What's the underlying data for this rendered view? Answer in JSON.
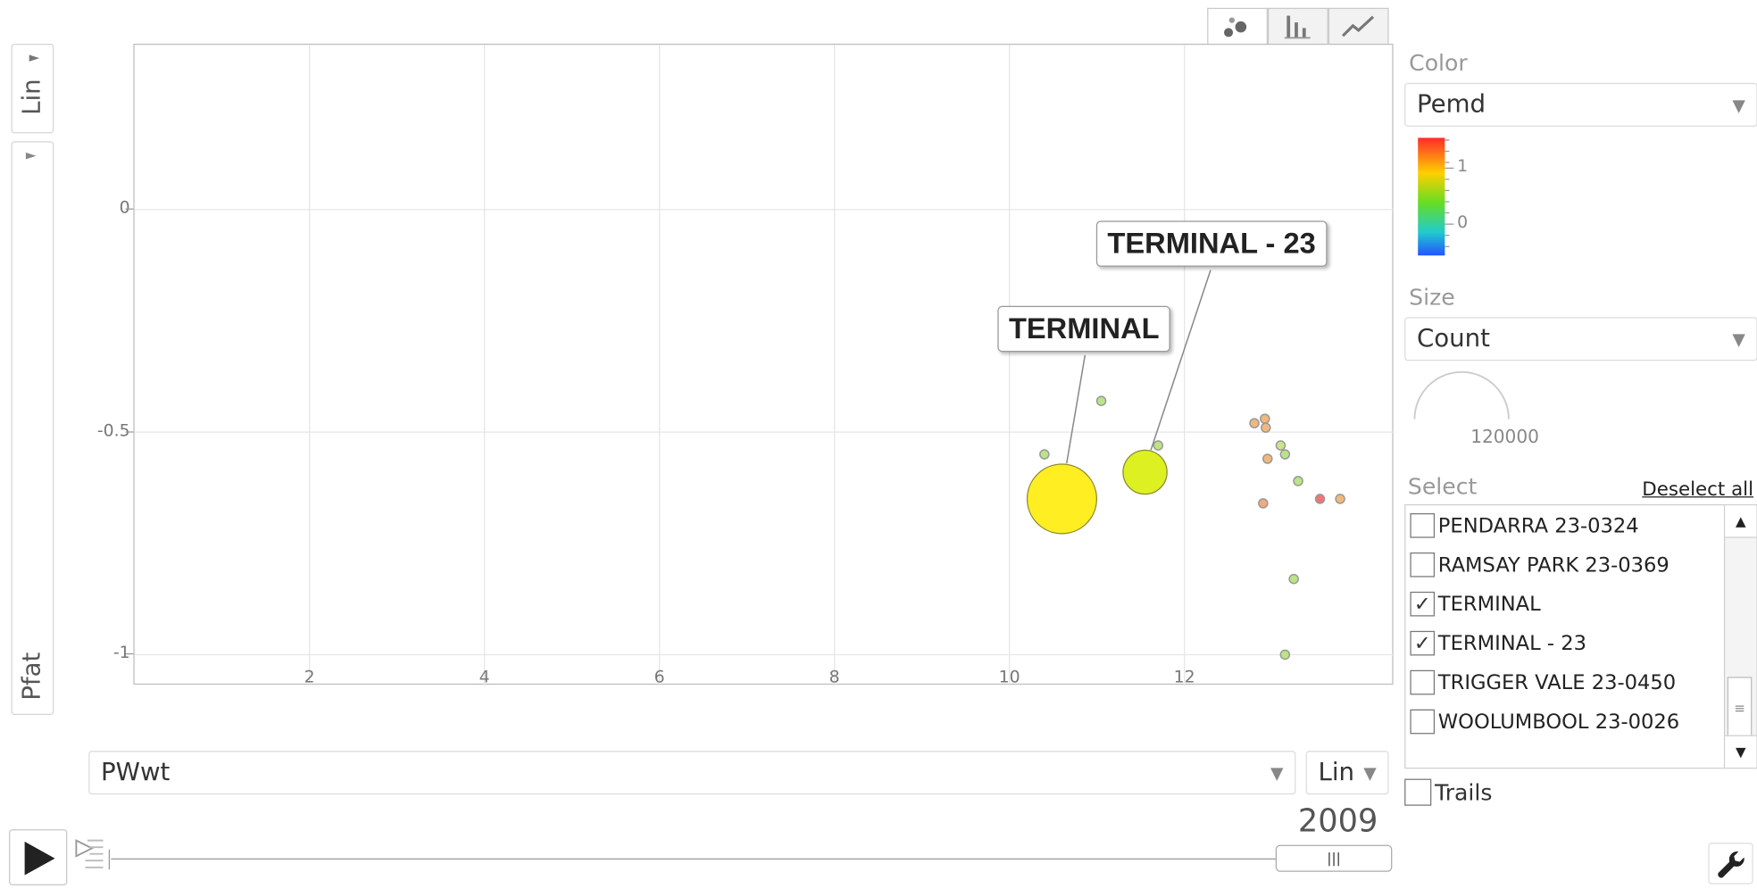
{
  "y_axis": {
    "scale": "Lin",
    "variable": "Pfat"
  },
  "x_axis": {
    "variable": "PWwt",
    "scale": "Lin"
  },
  "chart_tabs": [
    {
      "name": "bubble-icon",
      "active": true
    },
    {
      "name": "bar-chart-icon",
      "active": false
    },
    {
      "name": "line-chart-icon",
      "active": false
    }
  ],
  "color": {
    "label": "Color",
    "value": "Pemd",
    "legend_ticks": [
      "1",
      "0"
    ]
  },
  "size": {
    "label": "Size",
    "value": "Count",
    "legend_value": "120000"
  },
  "select": {
    "label": "Select",
    "deselect_all": "Deselect all",
    "items": [
      {
        "label": "PENDARRA 23-0324",
        "checked": false
      },
      {
        "label": "RAMSAY PARK 23-0369",
        "checked": false
      },
      {
        "label": "TERMINAL",
        "checked": true
      },
      {
        "label": "TERMINAL - 23",
        "checked": true
      },
      {
        "label": "TRIGGER VALE 23-0450",
        "checked": false
      },
      {
        "label": "WOOLUMBOOL 23-0026",
        "checked": false
      }
    ]
  },
  "trails": {
    "label": "Trails",
    "checked": false
  },
  "timeline": {
    "year": "2009",
    "progress": 1.0
  },
  "chart_data": {
    "type": "scatter",
    "subtype": "bubble",
    "xlabel": "PWwt",
    "ylabel": "Pfat",
    "xlim": [
      0,
      14.4
    ],
    "ylim": [
      -1.07,
      0.37
    ],
    "x_ticks": [
      2,
      4,
      6,
      8,
      10,
      12
    ],
    "y_ticks": [
      0,
      -0.5,
      -1
    ],
    "y_tick_labels": [
      "0",
      "-0.5",
      "-1"
    ],
    "grid": true,
    "size_variable": "Count",
    "color_variable": "Pemd",
    "points": [
      {
        "label": "TERMINAL",
        "x": 10.6,
        "y": -0.65,
        "size": 120000,
        "color": "#ffee22",
        "selected": true
      },
      {
        "label": "TERMINAL - 23",
        "x": 11.55,
        "y": -0.59,
        "size": 48000,
        "color": "#ddf022",
        "selected": true
      },
      {
        "x": 10.4,
        "y": -0.55,
        "size": 2000,
        "color": "#b5e07a"
      },
      {
        "x": 11.05,
        "y": -0.43,
        "size": 2000,
        "color": "#b5e07a"
      },
      {
        "x": 11.7,
        "y": -0.53,
        "size": 2000,
        "color": "#b5e07a"
      },
      {
        "x": 12.8,
        "y": -0.48,
        "size": 2000,
        "color": "#f0b070"
      },
      {
        "x": 12.92,
        "y": -0.47,
        "size": 2000,
        "color": "#f0b070"
      },
      {
        "x": 12.93,
        "y": -0.49,
        "size": 2000,
        "color": "#f0b070"
      },
      {
        "x": 13.1,
        "y": -0.53,
        "size": 2000,
        "color": "#c8e080"
      },
      {
        "x": 13.15,
        "y": -0.55,
        "size": 2000,
        "color": "#b5e07a"
      },
      {
        "x": 12.95,
        "y": -0.56,
        "size": 2000,
        "color": "#f0b070"
      },
      {
        "x": 13.3,
        "y": -0.61,
        "size": 2000,
        "color": "#b5e07a"
      },
      {
        "x": 12.9,
        "y": -0.66,
        "size": 2000,
        "color": "#f0a070"
      },
      {
        "x": 13.55,
        "y": -0.65,
        "size": 2000,
        "color": "#ee6666"
      },
      {
        "x": 13.78,
        "y": -0.65,
        "size": 2000,
        "color": "#f0b070"
      },
      {
        "x": 13.25,
        "y": -0.83,
        "size": 2000,
        "color": "#b5e07a"
      },
      {
        "x": 13.15,
        "y": -1.0,
        "size": 2000,
        "color": "#b5e07a"
      }
    ]
  }
}
